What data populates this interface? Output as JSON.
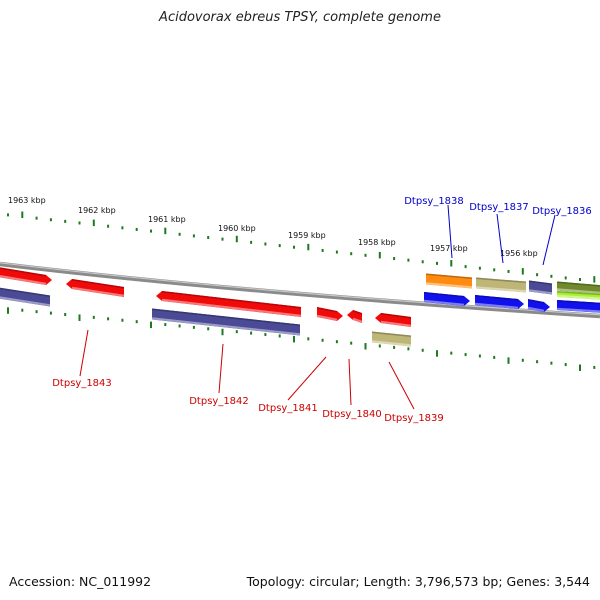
{
  "title": "Acidovorax ebreus TPSY, complete genome",
  "accession_line": "Accession: NC_011992",
  "summary_line": "Topology: circular; Length: 3,796,573 bp; Genes: 3,544",
  "colors": {
    "backbone": "#8a8a8a",
    "red": "#f00a0a",
    "navy": "#4a4a96",
    "blue": "#1111ee",
    "khaki": "#bdb676",
    "orange": "#ff8c10",
    "olive": "#6f8a2a",
    "lime": "#a8ee33",
    "tick": "#1f7a1f",
    "label_red": "#cc0000",
    "label_blue": "#0000cc"
  },
  "kbp_labels": [
    "1963 kbp",
    "1962 kbp",
    "1961 kbp",
    "1960 kbp",
    "1959 kbp",
    "1958 kbp",
    "1957 kbp",
    "1956 kbp"
  ],
  "gene_labels_top": [
    "Dtpsy_1838",
    "Dtpsy_1837",
    "Dtpsy_1836"
  ],
  "gene_labels_bottom": [
    "Dtpsy_1843",
    "Dtpsy_1842",
    "Dtpsy_1841",
    "Dtpsy_1840",
    "Dtpsy_1839"
  ]
}
